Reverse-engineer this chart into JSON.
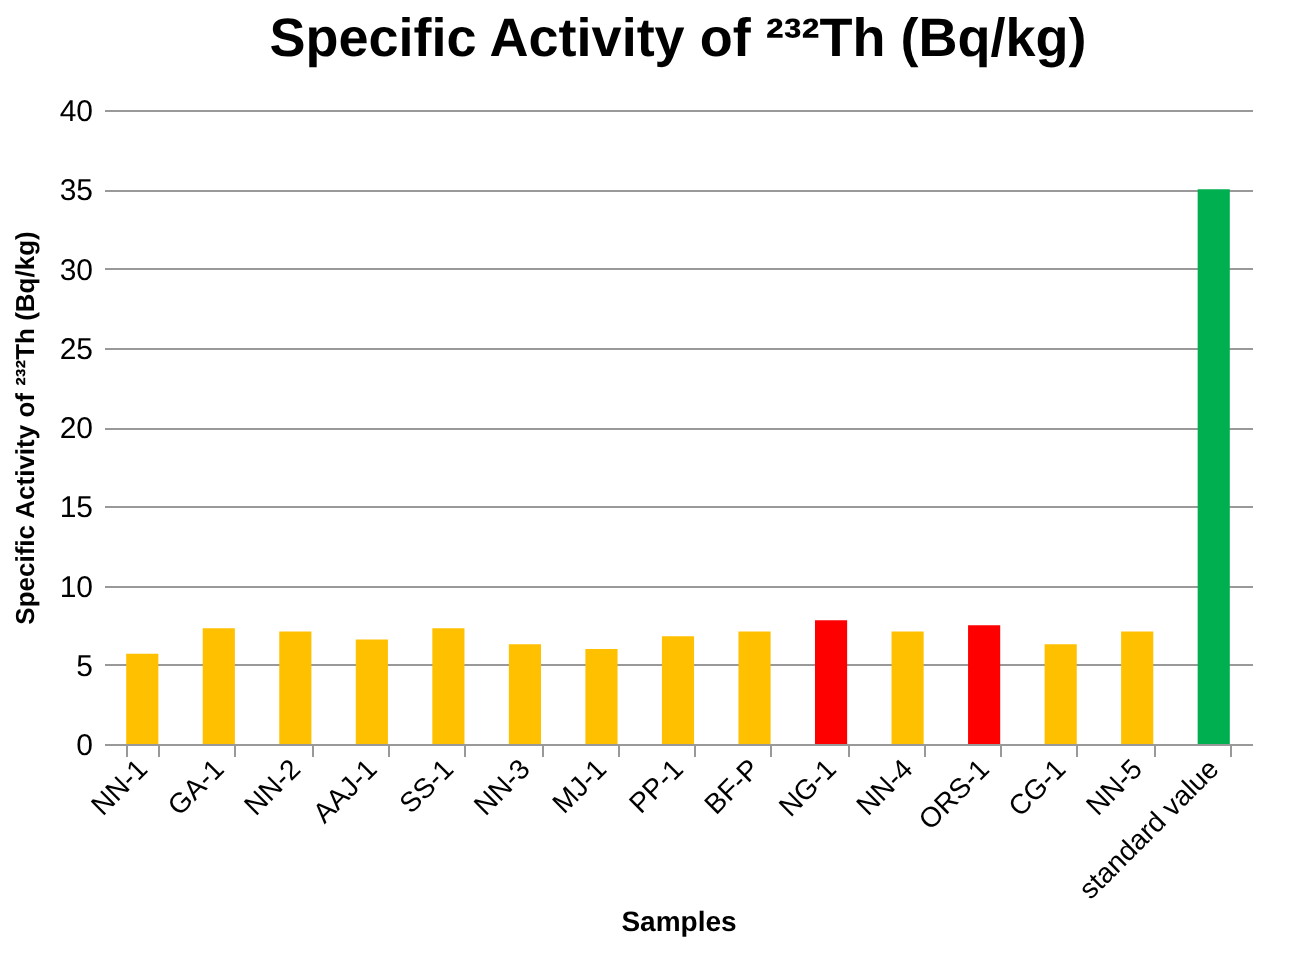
{
  "chart_data": {
    "type": "bar",
    "title": "Specific Activity of ²³²Th (Bq/kg)",
    "xlabel": "Samples",
    "ylabel": "Specific Activity of ²³²Th (Bq/kg)",
    "categories": [
      "NN-1",
      "GA-1",
      "NN-2",
      "AAJ-1",
      "SS-1",
      "NN-3",
      "MJ-1",
      "PP-1",
      "BF-P",
      "NG-1",
      "NN-4",
      "ORS-1",
      "CG-1",
      "NN-5",
      "standard value"
    ],
    "values": [
      5.7,
      7.3,
      7.1,
      6.6,
      7.3,
      6.3,
      6.0,
      6.8,
      7.1,
      7.8,
      7.1,
      7.5,
      6.3,
      7.1,
      35
    ],
    "colors": [
      "#ffc000",
      "#ffc000",
      "#ffc000",
      "#ffc000",
      "#ffc000",
      "#ffc000",
      "#ffc000",
      "#ffc000",
      "#ffc000",
      "#ff0000",
      "#ffc000",
      "#ff0000",
      "#ffc000",
      "#ffc000",
      "#00b050"
    ],
    "ylim": [
      0,
      40
    ],
    "yticks": [
      0,
      5,
      10,
      15,
      20,
      25,
      30,
      35,
      40
    ],
    "grid": "y"
  }
}
